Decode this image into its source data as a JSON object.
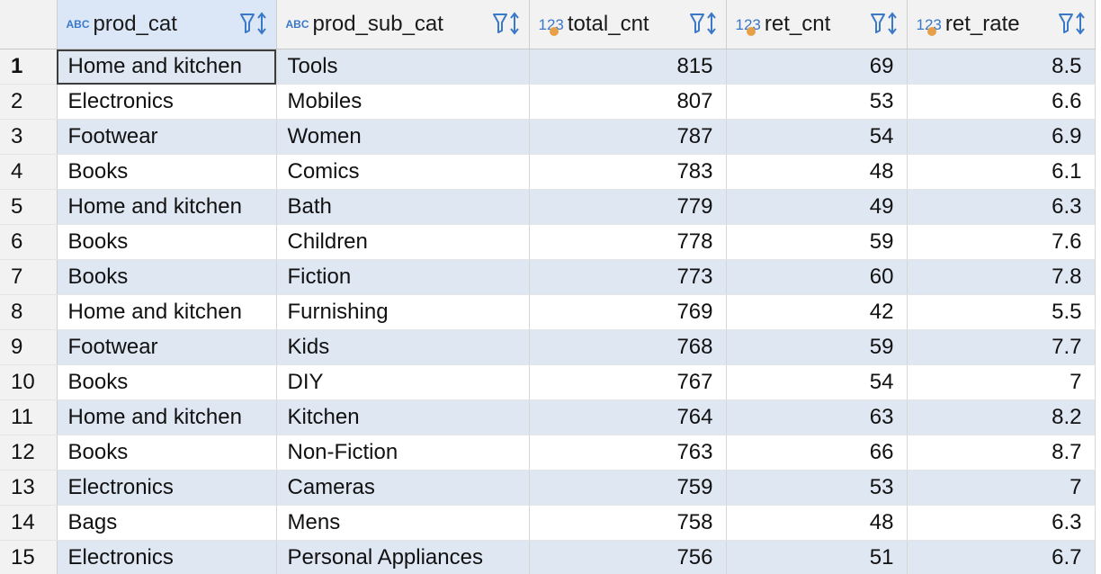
{
  "columns": [
    {
      "name": "prod_cat",
      "type": "ABC"
    },
    {
      "name": "prod_sub_cat",
      "type": "ABC"
    },
    {
      "name": "total_cnt",
      "type": "123"
    },
    {
      "name": "ret_cnt",
      "type": "123"
    },
    {
      "name": "ret_rate",
      "type": "123"
    }
  ],
  "rows": [
    {
      "n": "1",
      "prod_cat": "Home and kitchen",
      "prod_sub_cat": "Tools",
      "total_cnt": "815",
      "ret_cnt": "69",
      "ret_rate": "8.5"
    },
    {
      "n": "2",
      "prod_cat": "Electronics",
      "prod_sub_cat": "Mobiles",
      "total_cnt": "807",
      "ret_cnt": "53",
      "ret_rate": "6.6"
    },
    {
      "n": "3",
      "prod_cat": "Footwear",
      "prod_sub_cat": "Women",
      "total_cnt": "787",
      "ret_cnt": "54",
      "ret_rate": "6.9"
    },
    {
      "n": "4",
      "prod_cat": "Books",
      "prod_sub_cat": "Comics",
      "total_cnt": "783",
      "ret_cnt": "48",
      "ret_rate": "6.1"
    },
    {
      "n": "5",
      "prod_cat": "Home and kitchen",
      "prod_sub_cat": "Bath",
      "total_cnt": "779",
      "ret_cnt": "49",
      "ret_rate": "6.3"
    },
    {
      "n": "6",
      "prod_cat": "Books",
      "prod_sub_cat": "Children",
      "total_cnt": "778",
      "ret_cnt": "59",
      "ret_rate": "7.6"
    },
    {
      "n": "7",
      "prod_cat": "Books",
      "prod_sub_cat": "Fiction",
      "total_cnt": "773",
      "ret_cnt": "60",
      "ret_rate": "7.8"
    },
    {
      "n": "8",
      "prod_cat": "Home and kitchen",
      "prod_sub_cat": "Furnishing",
      "total_cnt": "769",
      "ret_cnt": "42",
      "ret_rate": "5.5"
    },
    {
      "n": "9",
      "prod_cat": "Footwear",
      "prod_sub_cat": "Kids",
      "total_cnt": "768",
      "ret_cnt": "59",
      "ret_rate": "7.7"
    },
    {
      "n": "10",
      "prod_cat": "Books",
      "prod_sub_cat": "DIY",
      "total_cnt": "767",
      "ret_cnt": "54",
      "ret_rate": "7"
    },
    {
      "n": "11",
      "prod_cat": "Home and kitchen",
      "prod_sub_cat": "Kitchen",
      "total_cnt": "764",
      "ret_cnt": "63",
      "ret_rate": "8.2"
    },
    {
      "n": "12",
      "prod_cat": "Books",
      "prod_sub_cat": "Non-Fiction",
      "total_cnt": "763",
      "ret_cnt": "66",
      "ret_rate": "8.7"
    },
    {
      "n": "13",
      "prod_cat": "Electronics",
      "prod_sub_cat": "Cameras",
      "total_cnt": "759",
      "ret_cnt": "53",
      "ret_rate": "7"
    },
    {
      "n": "14",
      "prod_cat": "Bags",
      "prod_sub_cat": "Mens",
      "total_cnt": "758",
      "ret_cnt": "48",
      "ret_rate": "6.3"
    },
    {
      "n": "15",
      "prod_cat": "Electronics",
      "prod_sub_cat": "Personal Appliances",
      "total_cnt": "756",
      "ret_cnt": "51",
      "ret_rate": "6.7"
    }
  ],
  "colors": {
    "accent": "#3a78c8",
    "numeric_dot": "#e8a048",
    "row_stripe": "#dfe7f3",
    "header_bg": "#f2f2f2"
  }
}
